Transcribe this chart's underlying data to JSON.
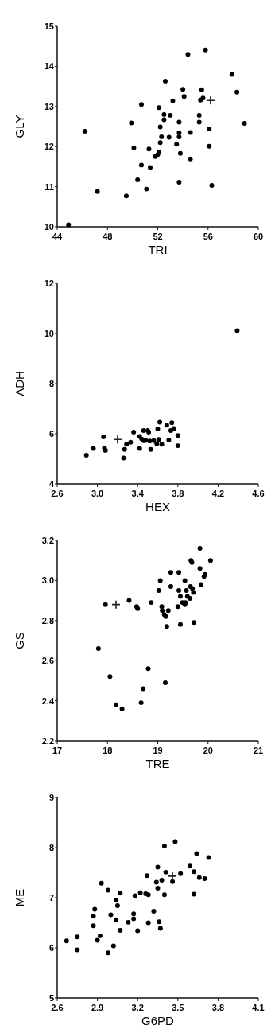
{
  "chart_data": [
    {
      "type": "scatter",
      "xlabel": "TRI",
      "ylabel": "GLY",
      "xlim": [
        44,
        60
      ],
      "ylim": [
        10,
        15
      ],
      "xticks": [
        44,
        48,
        52,
        56,
        60
      ],
      "yticks": [
        10,
        11,
        12,
        13,
        14,
        15
      ],
      "grid": false,
      "marker": "circle",
      "series": [
        {
          "color": "#000000",
          "x": [
            44.9,
            46.2,
            47.2,
            49.5,
            49.9,
            50.1,
            50.4,
            50.7,
            50.7,
            51.1,
            51.3,
            51.4,
            51.8,
            52.0,
            52.1,
            52.1,
            52.2,
            52.3,
            52.2,
            52.5,
            52.5,
            52.6,
            52.9,
            53.0,
            53.2,
            53.5,
            53.7,
            53.7,
            53.7,
            53.7,
            53.8,
            54.0,
            54.1,
            54.4,
            54.6,
            54.6,
            55.3,
            55.3,
            55.4,
            55.6,
            55.5,
            55.8,
            56.1,
            56.1,
            56.3,
            57.9,
            58.3,
            58.9
          ],
          "values": [
            10.05,
            12.38,
            10.88,
            10.77,
            12.59,
            11.97,
            11.17,
            13.05,
            11.54,
            10.94,
            11.94,
            11.48,
            11.75,
            11.8,
            11.86,
            12.97,
            12.49,
            12.24,
            12.1,
            12.67,
            12.8,
            13.63,
            12.23,
            12.78,
            13.14,
            12.06,
            12.61,
            12.34,
            12.24,
            11.11,
            11.83,
            13.43,
            13.25,
            14.3,
            12.35,
            11.69,
            12.61,
            12.78,
            13.16,
            13.21,
            13.42,
            14.41,
            12.44,
            12.01,
            11.03,
            13.8,
            13.36,
            12.58
          ]
        },
        {
          "color": "#222222",
          "marker": "cross",
          "x": [
            56.2
          ],
          "values": [
            13.15
          ]
        }
      ]
    },
    {
      "type": "scatter",
      "xlabel": "HEX",
      "ylabel": "ADH",
      "xlim": [
        2.6,
        4.6
      ],
      "ylim": [
        4,
        12
      ],
      "xticks": [
        2.6,
        {
          "value": 3,
          "label": "3.0"
        },
        3.4,
        3.8,
        4.2,
        4.6
      ],
      "yticks": [
        4,
        6,
        8,
        10,
        12
      ],
      "grid": false,
      "marker": "circle",
      "series": [
        {
          "color": "#000000",
          "x": [
            2.89,
            2.96,
            3.06,
            3.07,
            3.08,
            3.26,
            3.27,
            3.29,
            3.33,
            3.36,
            3.42,
            3.42,
            3.44,
            3.46,
            3.46,
            3.48,
            3.5,
            3.51,
            3.52,
            3.53,
            3.56,
            3.59,
            3.6,
            3.61,
            3.62,
            3.64,
            3.69,
            3.71,
            3.73,
            3.74,
            3.76,
            3.8,
            3.8,
            4.39
          ],
          "values": [
            5.14,
            5.41,
            5.87,
            5.43,
            5.33,
            5.03,
            5.37,
            5.58,
            5.66,
            6.06,
            5.41,
            5.89,
            5.79,
            6.13,
            5.72,
            5.73,
            6.13,
            6.06,
            5.71,
            5.37,
            5.72,
            5.6,
            6.19,
            5.77,
            6.46,
            5.58,
            6.34,
            5.75,
            6.13,
            6.44,
            6.21,
            5.93,
            5.52,
            10.11
          ]
        },
        {
          "color": "#222222",
          "marker": "cross",
          "x": [
            3.2
          ],
          "values": [
            5.77
          ]
        }
      ]
    },
    {
      "type": "scatter",
      "xlabel": "TRE",
      "ylabel": "GS",
      "xlim": [
        17,
        21
      ],
      "ylim": [
        2.2,
        3.2
      ],
      "xticks": [
        17,
        18,
        19,
        20,
        21
      ],
      "yticks": [
        2.2,
        2.4,
        2.6,
        2.8,
        {
          "value": 3,
          "label": "3.0"
        },
        3.2
      ],
      "grid": false,
      "marker": "circle",
      "series": [
        {
          "color": "#000000",
          "x": [
            17.96,
            18.43,
            17.82,
            18.05,
            18.17,
            18.29,
            18.67,
            18.71,
            18.81,
            19.15,
            18.58,
            18.6,
            18.87,
            19.02,
            19.05,
            19.08,
            19.09,
            19.13,
            19.16,
            19.18,
            19.21,
            19.26,
            19.26,
            19.42,
            19.42,
            19.4,
            19.45,
            19.45,
            19.49,
            19.54,
            19.57,
            19.54,
            19.55,
            19.59,
            19.64,
            19.65,
            19.66,
            19.68,
            19.69,
            19.71,
            19.72,
            19.84,
            19.84,
            19.86,
            19.92,
            19.94,
            20.05
          ],
          "values": [
            2.88,
            2.9,
            2.66,
            2.52,
            2.38,
            2.36,
            2.39,
            2.46,
            2.56,
            2.49,
            2.87,
            2.86,
            2.89,
            2.95,
            3.0,
            2.87,
            2.85,
            2.83,
            2.82,
            2.77,
            2.85,
            2.97,
            3.04,
            3.04,
            2.95,
            2.87,
            2.92,
            2.78,
            2.89,
            3.0,
            2.95,
            2.88,
            2.89,
            2.92,
            2.91,
            2.97,
            3.1,
            3.09,
            2.96,
            2.94,
            2.79,
            3.16,
            3.06,
            2.98,
            3.02,
            3.03,
            3.1
          ]
        },
        {
          "color": "#222222",
          "marker": "cross",
          "x": [
            18.17
          ],
          "values": [
            2.88
          ]
        }
      ]
    },
    {
      "type": "scatter",
      "xlabel": "G6PD",
      "ylabel": "ME",
      "xlim": [
        2.6,
        4.1
      ],
      "ylim": [
        5,
        9
      ],
      "xticks": [
        2.6,
        2.9,
        3.2,
        3.5,
        3.8,
        4.1
      ],
      "yticks": [
        5,
        6,
        7,
        8,
        9
      ],
      "grid": false,
      "marker": "circle",
      "series": [
        {
          "color": "#000000",
          "x": [
            2.67,
            2.75,
            2.75,
            2.87,
            2.87,
            2.88,
            2.9,
            2.92,
            2.93,
            2.98,
            2.98,
            3.0,
            3.02,
            3.04,
            3.04,
            3.05,
            3.07,
            3.07,
            3.13,
            3.17,
            3.17,
            3.18,
            3.2,
            3.22,
            3.26,
            3.27,
            3.28,
            3.28,
            3.32,
            3.34,
            3.35,
            3.35,
            3.36,
            3.37,
            3.38,
            3.4,
            3.4,
            3.41,
            3.46,
            3.48,
            3.52,
            3.59,
            3.62,
            3.62,
            3.64,
            3.66,
            3.7,
            3.73
          ],
          "values": [
            6.14,
            6.22,
            5.96,
            6.63,
            6.44,
            6.77,
            6.15,
            6.24,
            7.29,
            5.9,
            7.15,
            6.66,
            6.04,
            6.95,
            6.56,
            6.84,
            6.35,
            7.09,
            6.51,
            6.68,
            6.58,
            7.04,
            6.34,
            7.1,
            7.08,
            7.44,
            7.06,
            6.5,
            6.73,
            7.31,
            7.61,
            7.19,
            6.52,
            6.39,
            7.35,
            8.03,
            7.06,
            7.51,
            7.32,
            8.12,
            7.48,
            7.63,
            7.52,
            7.07,
            7.88,
            7.4,
            7.38,
            7.8
          ]
        },
        {
          "color": "#222222",
          "marker": "cross",
          "x": [
            3.46
          ],
          "values": [
            7.43
          ]
        }
      ]
    }
  ]
}
